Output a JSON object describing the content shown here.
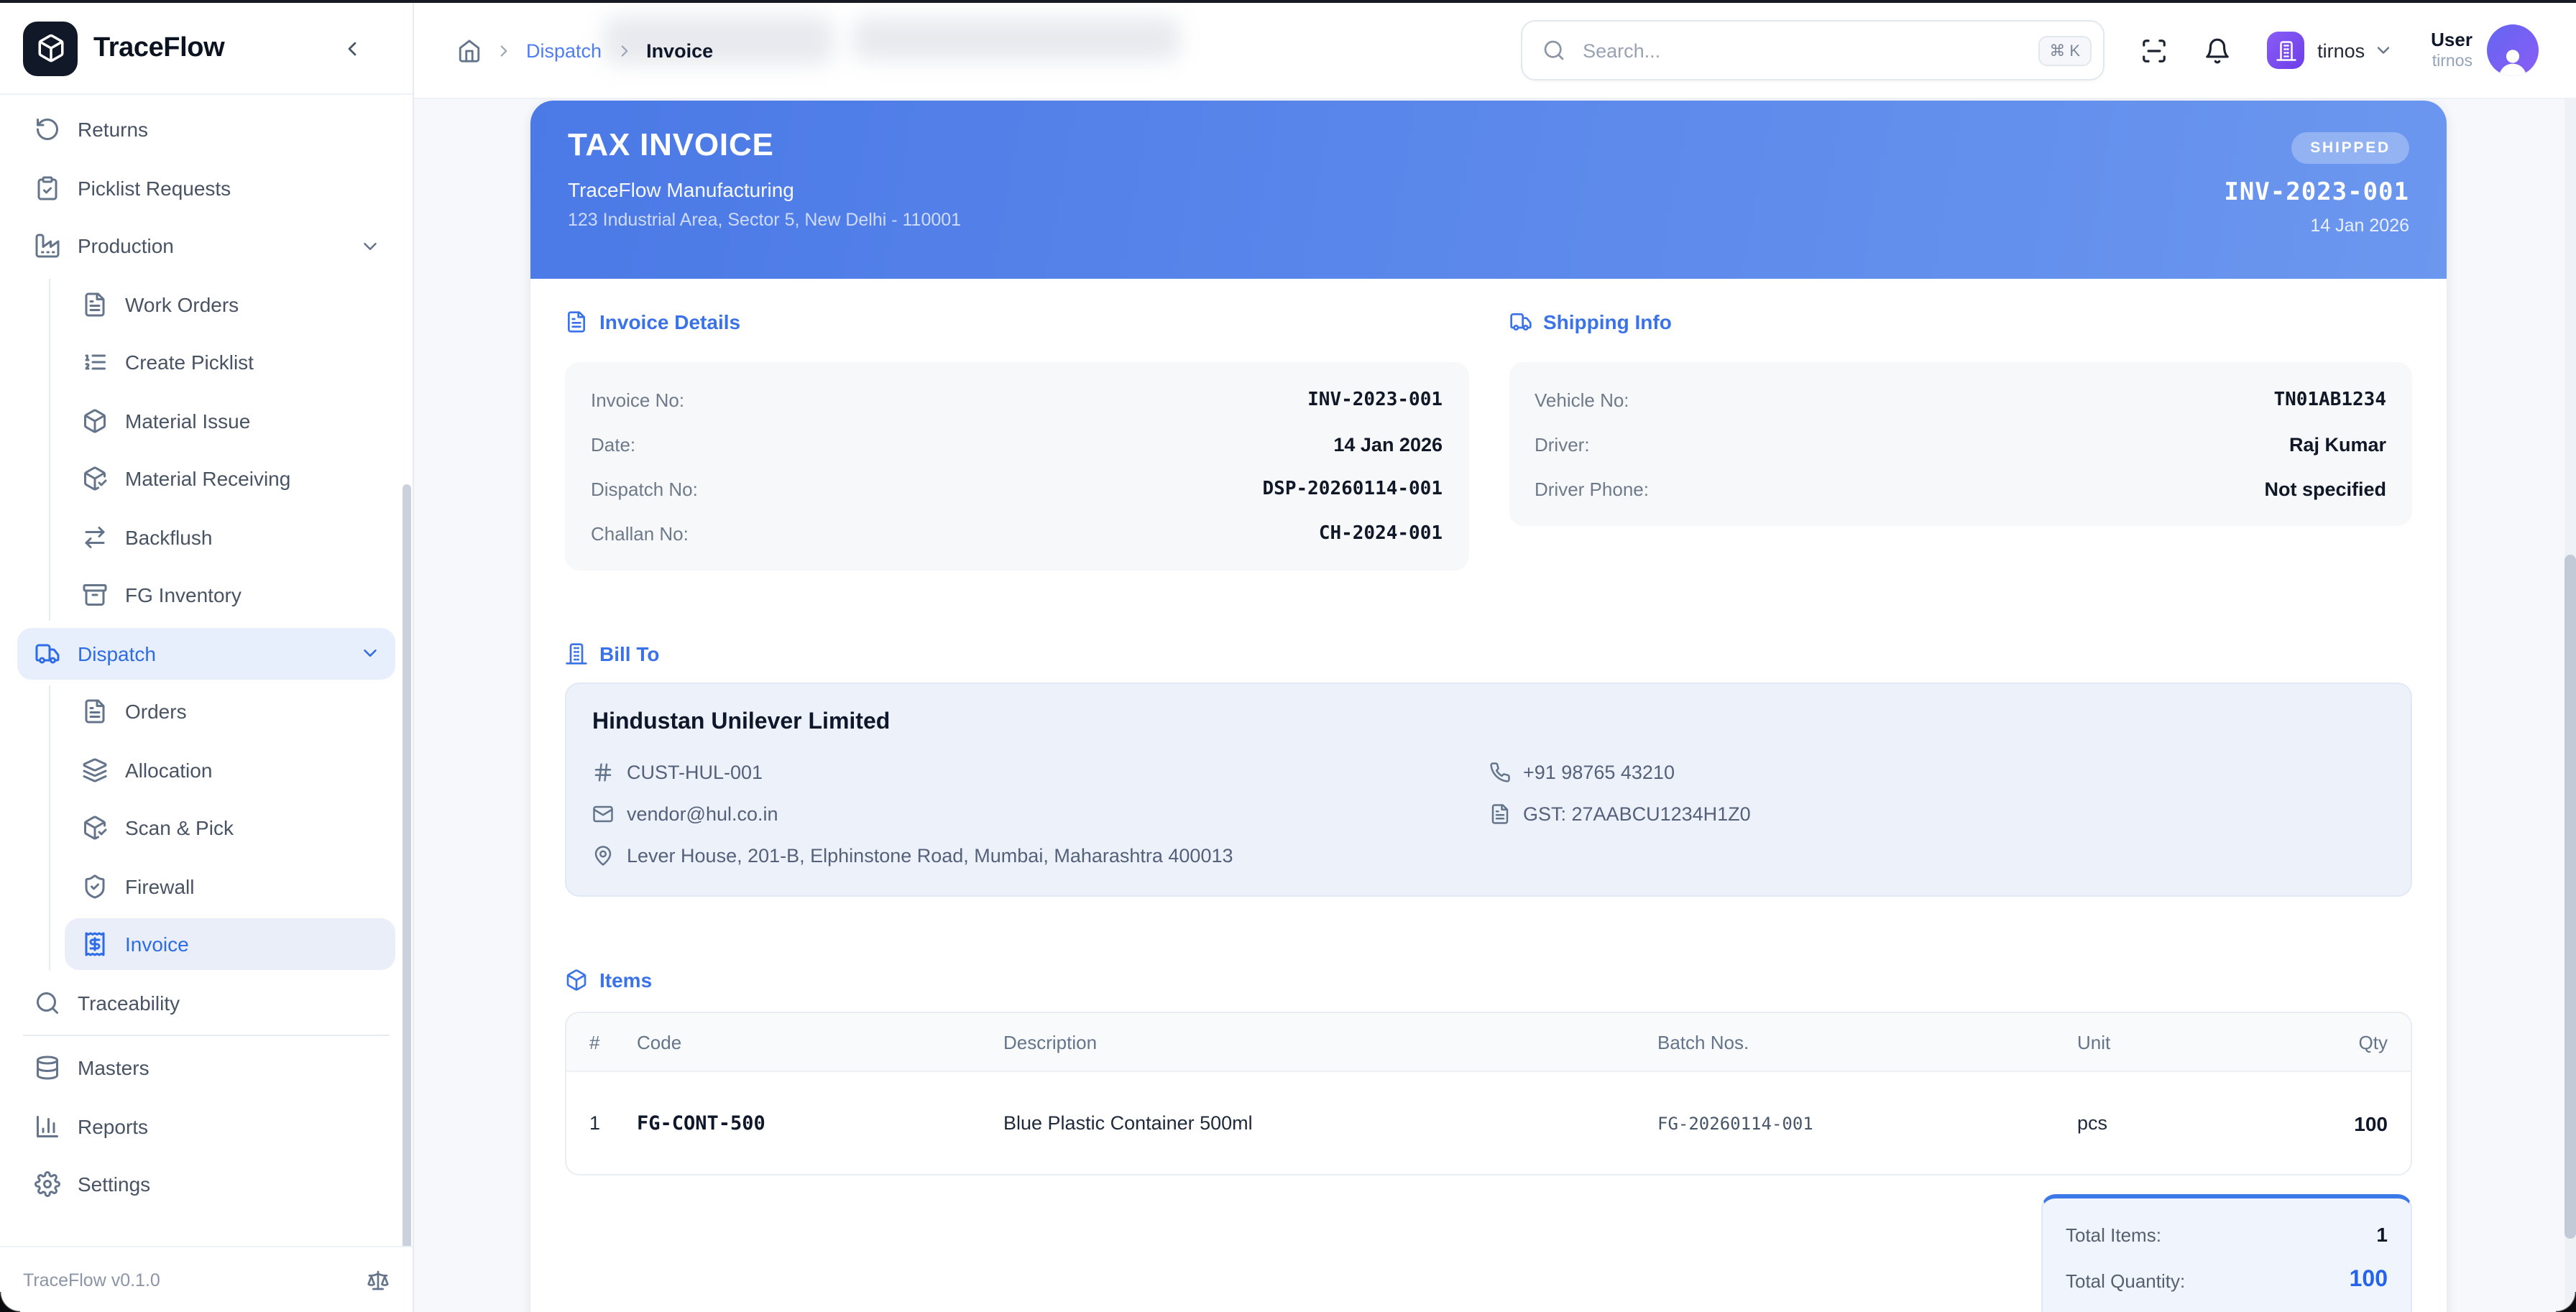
{
  "colors": {
    "accent_blue": "#3a72e9",
    "header_gradient_start": "#4b79e6",
    "header_gradient_end": "#6b97ef",
    "sidebar_active_bg": "#e8effc",
    "org_badge_purple": "#7c52f2",
    "avatar_gradient": "#6366f1-#8b5cf6",
    "total_qty_blue": "#2563eb"
  },
  "sidebar": {
    "brand": {
      "name": "TraceFlow",
      "logo_icon": "package",
      "collapse_icon": "chevron-left"
    },
    "items": [
      {
        "label": "Returns",
        "icon": "rotate-ccw"
      },
      {
        "label": "Picklist Requests",
        "icon": "clipboard-check"
      },
      {
        "label": "Production",
        "icon": "factory",
        "chevron": "chevron-down"
      },
      {
        "label": "Work Orders",
        "icon": "file-text"
      },
      {
        "label": "Create Picklist",
        "icon": "list-ordered"
      },
      {
        "label": "Material Issue",
        "icon": "package"
      },
      {
        "label": "Material Receiving",
        "icon": "package-check"
      },
      {
        "label": "Backflush",
        "icon": "arrow-right-left"
      },
      {
        "label": "FG Inventory",
        "icon": "archive"
      },
      {
        "label": "Dispatch",
        "icon": "truck",
        "chevron": "chevron-down"
      },
      {
        "label": "Orders",
        "icon": "file-text"
      },
      {
        "label": "Allocation",
        "icon": "layers"
      },
      {
        "label": "Scan & Pick",
        "icon": "package-check"
      },
      {
        "label": "Firewall",
        "icon": "shield-check"
      },
      {
        "label": "Invoice",
        "icon": "receipt"
      },
      {
        "label": "Traceability",
        "icon": "search"
      },
      {
        "label": "Masters",
        "icon": "database"
      },
      {
        "label": "Reports",
        "icon": "bar-chart"
      },
      {
        "label": "Settings",
        "icon": "settings"
      }
    ],
    "footer": {
      "version": "TraceFlow v0.1.0",
      "icon": "scale"
    }
  },
  "topbar": {
    "breadcrumb": {
      "home_icon": "home",
      "sep_icon": "chevron-right",
      "link": "Dispatch",
      "current": "Invoice"
    },
    "search": {
      "icon": "search",
      "placeholder": "Search...",
      "shortcut": "⌘ K"
    },
    "actions": {
      "scan_icon": "scan-line",
      "bell_icon": "bell"
    },
    "org": {
      "icon": "building",
      "name": "tirnos",
      "chevron": "chevron-down"
    },
    "user": {
      "name": "User",
      "org": "tirnos",
      "avatar_icon": "user-fill"
    }
  },
  "invoice": {
    "header": {
      "title": "TAX INVOICE",
      "company": "TraceFlow Manufacturing",
      "address": "123 Industrial Area, Sector 5, New Delhi - 110001",
      "status": "SHIPPED",
      "number": "INV-2023-001",
      "date": "14 Jan 2026"
    },
    "details": {
      "title": "Invoice Details",
      "icon": "file-text",
      "rows": [
        {
          "label": "Invoice No:",
          "value": "INV-2023-001"
        },
        {
          "label": "Date:",
          "value": "14 Jan 2026"
        },
        {
          "label": "Dispatch No:",
          "value": "DSP-20260114-001"
        },
        {
          "label": "Challan No:",
          "value": "CH-2024-001"
        }
      ]
    },
    "shipping": {
      "title": "Shipping Info",
      "icon": "truck",
      "rows": [
        {
          "label": "Vehicle No:",
          "value": "TN01AB1234"
        },
        {
          "label": "Driver:",
          "value": "Raj Kumar"
        },
        {
          "label": "Driver Phone:",
          "value": "Not specified"
        }
      ]
    },
    "bill_to": {
      "title": "Bill To",
      "icon": "building",
      "name": "Hindustan Unilever Limited",
      "customer_code": {
        "icon": "hash",
        "value": "CUST-HUL-001"
      },
      "email": {
        "icon": "mail",
        "value": "vendor@hul.co.in"
      },
      "phone": {
        "icon": "phone",
        "value": "+91 98765 43210"
      },
      "gst": {
        "icon": "file-text",
        "value": "GST: 27AABCU1234H1Z0"
      },
      "address": {
        "icon": "map-pin",
        "value": "Lever House, 201-B, Elphinstone Road, Mumbai, Maharashtra 400013"
      }
    },
    "items": {
      "title": "Items",
      "icon": "package",
      "columns": {
        "sno": "#",
        "code": "Code",
        "description": "Description",
        "batch": "Batch Nos.",
        "unit": "Unit",
        "qty": "Qty"
      },
      "rows": [
        {
          "sno": "1",
          "code": "FG-CONT-500",
          "description": "Blue Plastic Container 500ml",
          "batch": "FG-20260114-001",
          "unit": "pcs",
          "qty": "100"
        }
      ]
    },
    "totals": {
      "rows": [
        {
          "label": "Total Items:",
          "value": "1"
        },
        {
          "label": "Total Quantity:",
          "value": "100"
        }
      ]
    }
  }
}
